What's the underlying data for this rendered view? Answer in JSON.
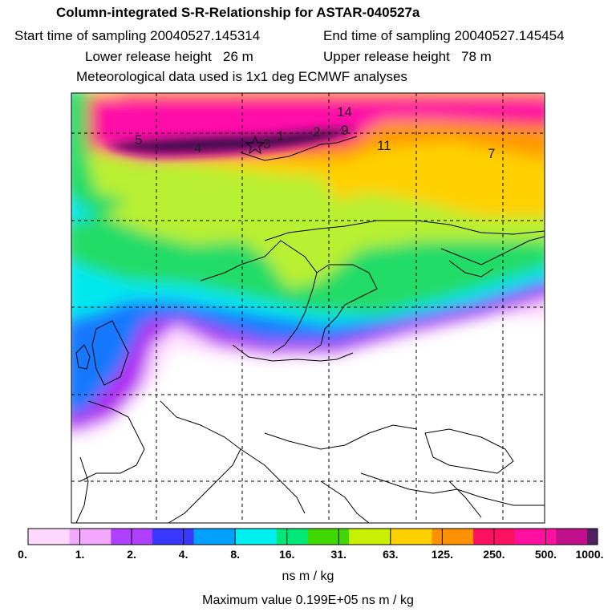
{
  "header": {
    "title": "Column-integrated S-R-Relationship for ASTAR-040527a",
    "start_label": "Start time of sampling 20040527.145314",
    "end_label": "End time of sampling 20040527.145454",
    "lower_label": "Lower release height   26 m",
    "upper_label": "Upper release height   78 m",
    "met_label": "Meteorological data used is 1x1 deg ECMWF analyses"
  },
  "map_labels": [
    "14",
    "5",
    "4",
    "3",
    "1",
    "2",
    "9",
    "11",
    "7"
  ],
  "colorbar": {
    "tick_labels": [
      "0.",
      "1.",
      "2.",
      "4.",
      "8.",
      "16.",
      "31.",
      "63.",
      "125.",
      "250.",
      "500.",
      "1000."
    ],
    "colors": [
      "#ffd8ff",
      "#f2a8ff",
      "#b040ff",
      "#3838ff",
      "#00a0ff",
      "#00f0f0",
      "#00e878",
      "#40d800",
      "#c8f000",
      "#ffd000",
      "#ff9000",
      "#ff1060",
      "#ff10a0",
      "#c0108c",
      "#502060"
    ],
    "units": "ns m / kg"
  },
  "footer": {
    "max_value": "Maximum value  0.199E+05 ns m / kg"
  },
  "colors": {
    "low": "#ffe8ff",
    "purple": "#a020f0",
    "blue": "#1060ff",
    "cyan": "#00e8f0",
    "green": "#28e060",
    "yellowgreen": "#c0f030",
    "yellow": "#ffd800",
    "orange": "#ffa000",
    "red": "#ff3050",
    "magenta": "#ff10a8",
    "dark": "#3a1050"
  }
}
